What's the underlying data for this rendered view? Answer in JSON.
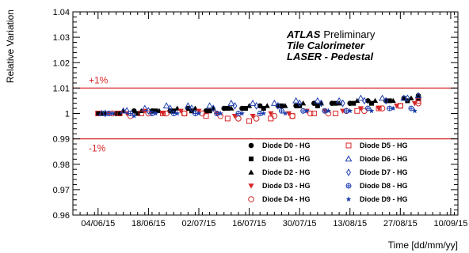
{
  "chart_data": {
    "type": "scatter",
    "title": "",
    "xlabel": "Time [dd/mm/yy]",
    "ylabel": "Relative Variation",
    "ylim": [
      0.96,
      1.04
    ],
    "xlim": [
      "2015-05-28",
      "2015-09-12"
    ],
    "x_ticks": [
      "2015-06-04",
      "2015-06-18",
      "2015-07-02",
      "2015-07-16",
      "2015-07-30",
      "2015-08-13",
      "2015-08-27",
      "2015-09-10"
    ],
    "x_tick_labels": [
      "04/06/15",
      "18/06/15",
      "02/07/15",
      "16/07/15",
      "30/07/15",
      "13/08/15",
      "27/08/15",
      "10/09/15"
    ],
    "y_ticks": [
      0.96,
      0.97,
      0.98,
      0.99,
      1,
      1.01,
      1.02,
      1.03,
      1.04
    ],
    "y_tick_labels": [
      "0.96",
      "0.97",
      "0.98",
      "0.99",
      "1",
      "1.01",
      "1.02",
      "1.03",
      "1.04"
    ],
    "grid": false,
    "legend_position": "bottom-right",
    "annotations": {
      "experiment": "ATLAS",
      "status": "Preliminary",
      "line2": "Tile Calorimeter",
      "line3": "LASER - Pedestal"
    },
    "reference_lines": [
      {
        "y": 1.01,
        "label": "+1%",
        "color": "#d62728"
      },
      {
        "y": 0.99,
        "label": "-1%",
        "color": "#d62728"
      }
    ],
    "series": [
      {
        "name": "Diode D0 - HG",
        "marker": "circle-filled",
        "color": "#000000",
        "x": [
          "2015-06-04",
          "2015-06-09",
          "2015-06-14",
          "2015-06-19",
          "2015-06-24",
          "2015-06-29",
          "2015-07-04",
          "2015-07-09",
          "2015-07-14",
          "2015-07-19",
          "2015-07-24",
          "2015-07-29",
          "2015-08-03",
          "2015-08-08",
          "2015-08-13",
          "2015-08-18",
          "2015-08-23",
          "2015-08-28",
          "2015-09-01"
        ],
        "y": [
          1.0,
          1.0,
          1.001,
          1.001,
          1.001,
          1.002,
          1.001,
          1.002,
          1.002,
          1.003,
          1.003,
          1.003,
          1.004,
          1.004,
          1.004,
          1.005,
          1.005,
          1.006,
          1.007
        ]
      },
      {
        "name": "Diode D1 - HG",
        "marker": "square-filled",
        "color": "#000000",
        "x": [
          "2015-06-05",
          "2015-06-10",
          "2015-06-15",
          "2015-06-20",
          "2015-06-25",
          "2015-06-30",
          "2015-07-05",
          "2015-07-10",
          "2015-07-15",
          "2015-07-20",
          "2015-07-25",
          "2015-07-30",
          "2015-08-04",
          "2015-08-09",
          "2015-08-14",
          "2015-08-19",
          "2015-08-24",
          "2015-08-29",
          "2015-09-01"
        ],
        "y": [
          1.0,
          1.0,
          1.0,
          1.001,
          1.001,
          1.001,
          1.001,
          1.002,
          1.002,
          1.002,
          1.003,
          1.003,
          1.003,
          1.004,
          1.004,
          1.004,
          1.005,
          1.005,
          1.006
        ]
      },
      {
        "name": "Diode D2 - HG",
        "marker": "triangle-up-filled",
        "color": "#000000",
        "x": [
          "2015-06-06",
          "2015-06-11",
          "2015-06-16",
          "2015-06-21",
          "2015-06-26",
          "2015-07-01",
          "2015-07-06",
          "2015-07-11",
          "2015-07-16",
          "2015-07-21",
          "2015-07-26",
          "2015-07-31",
          "2015-08-05",
          "2015-08-10",
          "2015-08-15",
          "2015-08-20",
          "2015-08-25",
          "2015-08-30"
        ],
        "y": [
          1.0,
          1.001,
          1.001,
          1.001,
          1.002,
          1.002,
          1.002,
          1.002,
          1.003,
          1.003,
          1.003,
          1.004,
          1.004,
          1.004,
          1.005,
          1.005,
          1.005,
          1.006
        ]
      },
      {
        "name": "Diode D3 - HG",
        "marker": "triangle-down-filled",
        "color": "#d62728",
        "x": [
          "2015-06-07",
          "2015-06-12",
          "2015-06-17",
          "2015-06-22",
          "2015-06-27",
          "2015-07-02",
          "2015-07-07",
          "2015-07-12",
          "2015-07-17",
          "2015-07-22",
          "2015-07-27",
          "2015-08-01",
          "2015-08-06",
          "2015-08-11",
          "2015-08-16",
          "2015-08-21",
          "2015-08-26",
          "2015-08-31"
        ],
        "y": [
          1.0,
          1.0,
          1.001,
          1.0,
          1.001,
          1.001,
          1.0,
          0.999,
          0.999,
          1.0,
          1.0,
          1.001,
          1.001,
          1.001,
          1.002,
          1.002,
          1.003,
          1.004
        ]
      },
      {
        "name": "Diode D4 - HG",
        "marker": "circle-open",
        "color": "#d62728",
        "x": [
          "2015-06-08",
          "2015-06-13",
          "2015-06-18",
          "2015-06-23",
          "2015-06-28",
          "2015-07-03",
          "2015-07-08",
          "2015-07-13",
          "2015-07-18",
          "2015-07-23",
          "2015-07-28",
          "2015-08-02",
          "2015-08-07",
          "2015-08-12",
          "2015-08-17",
          "2015-08-22",
          "2015-08-27",
          "2015-09-01"
        ],
        "y": [
          1.0,
          0.999,
          1.0,
          1.0,
          1.0,
          1.0,
          0.999,
          0.998,
          0.998,
          0.999,
          0.999,
          1.0,
          1.0,
          1.001,
          1.001,
          1.002,
          1.003,
          1.004
        ]
      },
      {
        "name": "Diode D5 - HG",
        "marker": "square-open",
        "color": "#d62728",
        "x": [
          "2015-06-04",
          "2015-06-10",
          "2015-06-16",
          "2015-06-22",
          "2015-06-28",
          "2015-07-04",
          "2015-07-10",
          "2015-07-16",
          "2015-07-22",
          "2015-07-28",
          "2015-08-03",
          "2015-08-09",
          "2015-08-15",
          "2015-08-21",
          "2015-08-27",
          "2015-09-01"
        ],
        "y": [
          1.0,
          1.0,
          1.0,
          1.0,
          1.0,
          0.999,
          0.998,
          0.997,
          0.998,
          0.999,
          1.0,
          1.0,
          1.001,
          1.002,
          1.003,
          1.005
        ]
      },
      {
        "name": "Diode D6 - HG",
        "marker": "triangle-up-open",
        "color": "#1f3fae",
        "x": [
          "2015-06-05",
          "2015-06-11",
          "2015-06-17",
          "2015-06-23",
          "2015-06-29",
          "2015-07-05",
          "2015-07-11",
          "2015-07-17",
          "2015-07-23",
          "2015-07-29",
          "2015-08-04",
          "2015-08-10",
          "2015-08-16",
          "2015-08-22",
          "2015-08-28",
          "2015-09-01"
        ],
        "y": [
          1.0,
          1.001,
          1.002,
          1.003,
          1.003,
          1.003,
          1.004,
          1.004,
          1.004,
          1.005,
          1.005,
          1.005,
          1.006,
          1.006,
          1.006,
          1.007
        ]
      },
      {
        "name": "Diode D7 - HG",
        "marker": "diamond-open",
        "color": "#1f3fae",
        "x": [
          "2015-06-06",
          "2015-06-12",
          "2015-06-18",
          "2015-06-24",
          "2015-06-30",
          "2015-07-06",
          "2015-07-12",
          "2015-07-18",
          "2015-07-24",
          "2015-07-30",
          "2015-08-05",
          "2015-08-11",
          "2015-08-17",
          "2015-08-23",
          "2015-08-29"
        ],
        "y": [
          1.0,
          1.001,
          1.001,
          1.002,
          1.002,
          1.002,
          1.003,
          1.003,
          1.003,
          1.004,
          1.004,
          1.004,
          1.005,
          1.005,
          1.006
        ]
      },
      {
        "name": "Diode D8 - HG",
        "marker": "cross-circle-open",
        "color": "#1f3fae",
        "x": [
          "2015-06-07",
          "2015-06-13",
          "2015-06-19",
          "2015-06-25",
          "2015-07-01",
          "2015-07-07",
          "2015-07-13",
          "2015-07-19",
          "2015-07-25",
          "2015-07-31",
          "2015-08-06",
          "2015-08-12",
          "2015-08-18",
          "2015-08-24",
          "2015-08-30"
        ],
        "y": [
          1.0,
          1.0,
          1.0,
          1.0,
          1.0,
          1.0,
          1.0,
          1.0,
          1.001,
          1.001,
          1.001,
          1.001,
          1.002,
          1.002,
          1.002
        ]
      },
      {
        "name": "Diode D9 - HG",
        "marker": "star",
        "color": "#1f3fae",
        "x": [
          "2015-06-08",
          "2015-06-14",
          "2015-06-20",
          "2015-06-26",
          "2015-07-02",
          "2015-07-08",
          "2015-07-14",
          "2015-07-20",
          "2015-07-26",
          "2015-08-01",
          "2015-08-07",
          "2015-08-13",
          "2015-08-19",
          "2015-08-25",
          "2015-08-31"
        ],
        "y": [
          1.0,
          0.999,
          1.0,
          1.0,
          1.0,
          1.0,
          1.0,
          1.0,
          1.0,
          1.001,
          1.001,
          1.001,
          1.001,
          1.002,
          1.001
        ]
      }
    ]
  }
}
